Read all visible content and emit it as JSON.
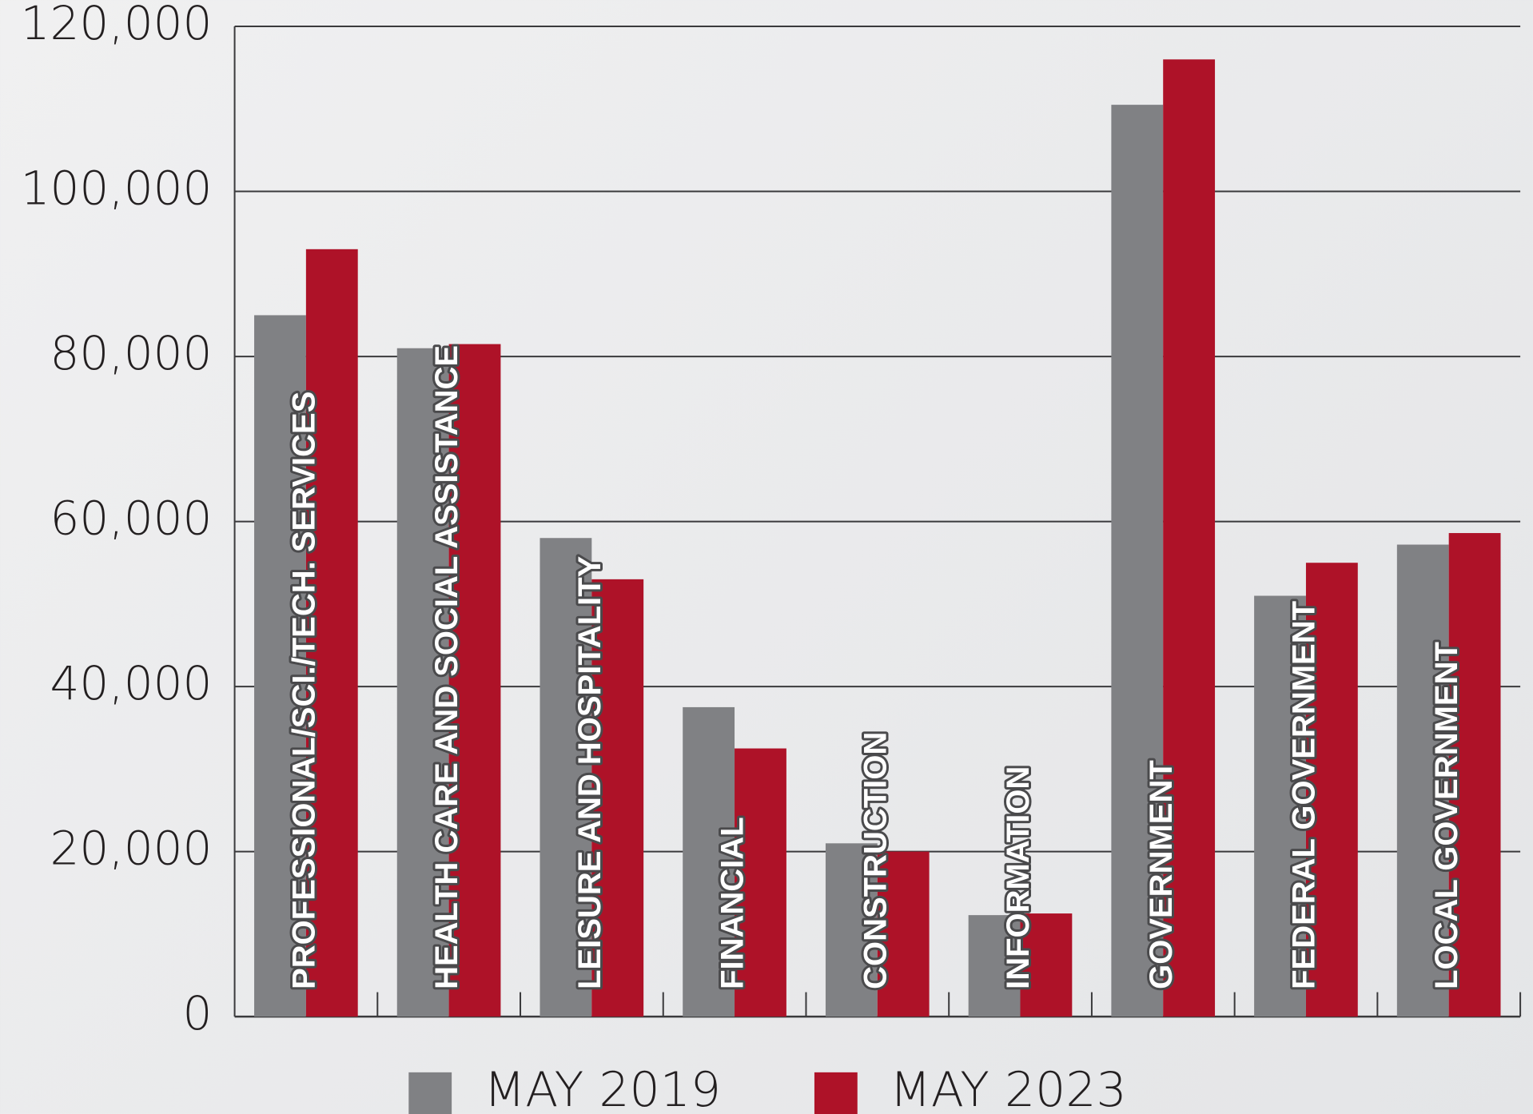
{
  "chart_data": {
    "type": "bar",
    "categories": [
      "PROFESSIONAL/SCI./TECH. SERVICES",
      "HEALTH CARE AND SOCIAL ASSISTANCE",
      "LEISURE AND HOSPITALITY",
      "FINANCIAL",
      "CONSTRUCTION",
      "INFORMATION",
      "GOVERNMENT",
      "FEDERAL GOVERNMENT",
      "LOCAL GOVERNMENT"
    ],
    "series": [
      {
        "name": "MAY 2019",
        "color": "#808184",
        "values": [
          85000,
          81000,
          58000,
          37500,
          21000,
          12300,
          110500,
          51000,
          57200
        ]
      },
      {
        "name": "MAY 2023",
        "color": "#ae1228",
        "values": [
          93000,
          81500,
          53000,
          32500,
          20000,
          12500,
          116000,
          55000,
          58600
        ]
      }
    ],
    "ylim": [
      0,
      120000
    ],
    "yticks": [
      0,
      {
        "value": 20000,
        "label": "20,000"
      },
      {
        "value": 40000,
        "label": "40,000"
      },
      {
        "value": 60000,
        "label": "60,000"
      },
      {
        "value": 80000,
        "label": "80,000"
      },
      {
        "value": 100000,
        "label": "100,000"
      },
      {
        "value": 120000,
        "label": "120,000"
      }
    ],
    "grid": true
  }
}
